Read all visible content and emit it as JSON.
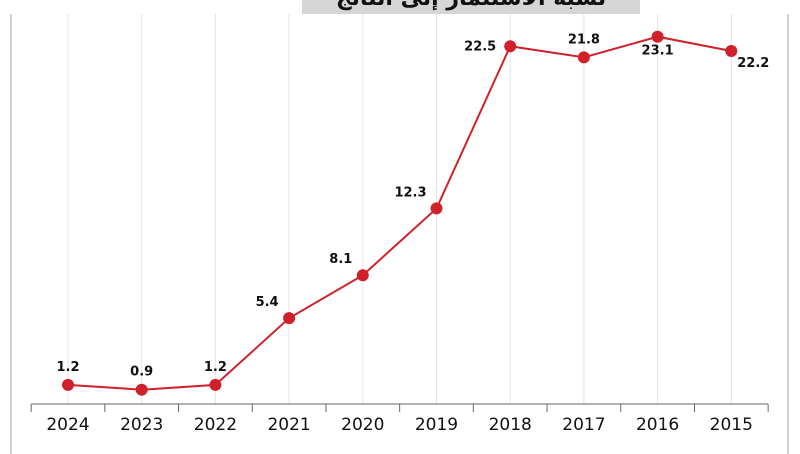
{
  "chart_data": {
    "type": "line",
    "title": "نسبة الاستثمار إلى الناتج المحلي (%)",
    "categories": [
      "2024",
      "2023",
      "2022",
      "2021",
      "2020",
      "2019",
      "2018",
      "2017",
      "2016",
      "2015"
    ],
    "series": [
      {
        "name": "investment_to_gdp",
        "values": [
          1.2,
          0.9,
          1.2,
          5.4,
          8.1,
          12.3,
          22.5,
          21.8,
          23.1,
          22.2
        ]
      }
    ],
    "data_labels": [
      "1.2",
      "0.9",
      "1.2",
      "5.4",
      "8.1",
      "12.3",
      "22.5",
      "21.8",
      "23.1",
      "22.2"
    ],
    "xlabel": "",
    "ylabel": "",
    "ylim": [
      0,
      25
    ],
    "grid": "vertical",
    "colors": {
      "line": "#d0202a",
      "grid": "#e3e3e3",
      "axis": "#666666"
    }
  }
}
